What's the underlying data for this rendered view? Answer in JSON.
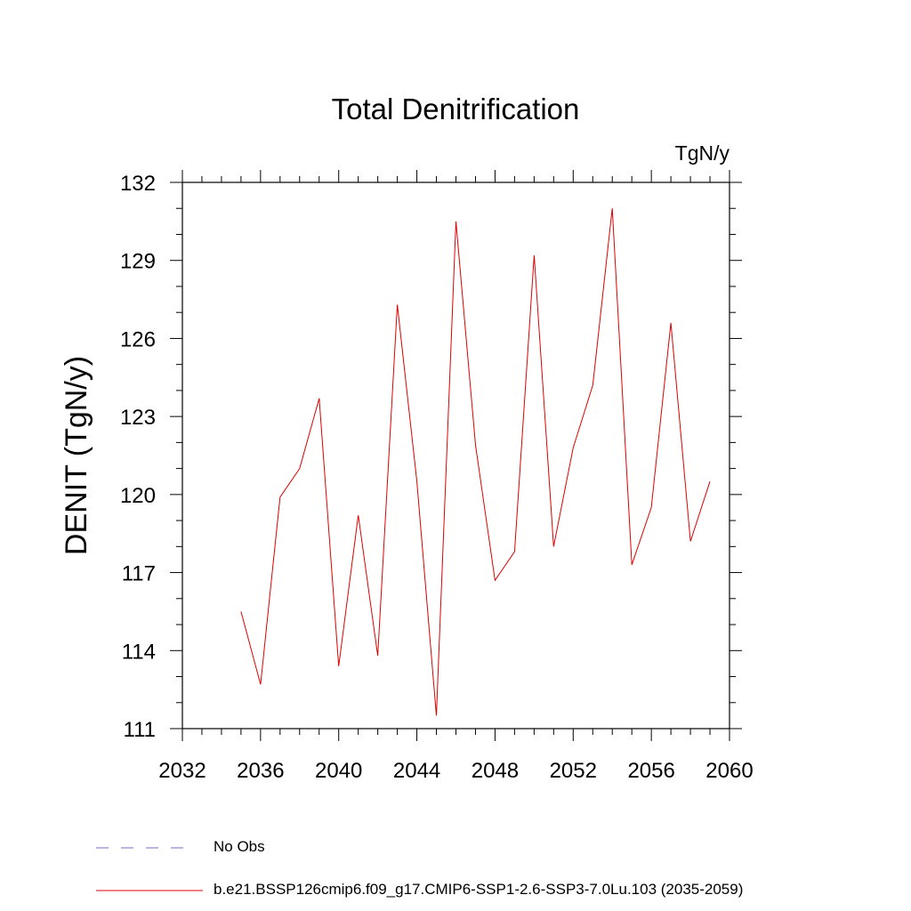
{
  "chart_data": {
    "type": "line",
    "title": "Total Denitrification",
    "units_label": "TgN/y",
    "ylabel": "DENIT  (TgN/y)",
    "xlabel": "",
    "xlim": [
      2032,
      2060
    ],
    "ylim": [
      111,
      132
    ],
    "x_ticks": [
      "2032",
      "2036",
      "2040",
      "2044",
      "2048",
      "2052",
      "2056",
      "2060"
    ],
    "y_ticks": [
      "111",
      "114",
      "117",
      "120",
      "123",
      "126",
      "129",
      "132"
    ],
    "grid": false,
    "series": [
      {
        "name": "b.e21.BSSP126cmip6.f09_g17.CMIP6-SSP1-2.6-SSP3-7.0Lu.103 (2035-2059)",
        "color": "#e00000",
        "x": [
          2035,
          2036,
          2037,
          2038,
          2039,
          2040,
          2041,
          2042,
          2043,
          2044,
          2045,
          2046,
          2047,
          2048,
          2049,
          2050,
          2051,
          2052,
          2053,
          2054,
          2055,
          2056,
          2057,
          2058,
          2059
        ],
        "y": [
          115.5,
          112.7,
          119.9,
          121.0,
          123.7,
          113.4,
          119.2,
          113.8,
          127.3,
          120.5,
          111.5,
          130.5,
          121.9,
          116.7,
          117.8,
          129.2,
          118.0,
          121.8,
          124.2,
          131.0,
          117.3,
          119.5,
          126.6,
          118.2,
          120.5
        ]
      }
    ],
    "legend": {
      "placement": "bottom",
      "entries": [
        {
          "label": "No Obs",
          "color": "#7b68c8",
          "style": "dashed"
        },
        {
          "label": "b.e21.BSSP126cmip6.f09_g17.CMIP6-SSP1-2.6-SSP3-7.0Lu.103 (2035-2059)",
          "color": "#e00000",
          "style": "solid"
        }
      ]
    }
  }
}
